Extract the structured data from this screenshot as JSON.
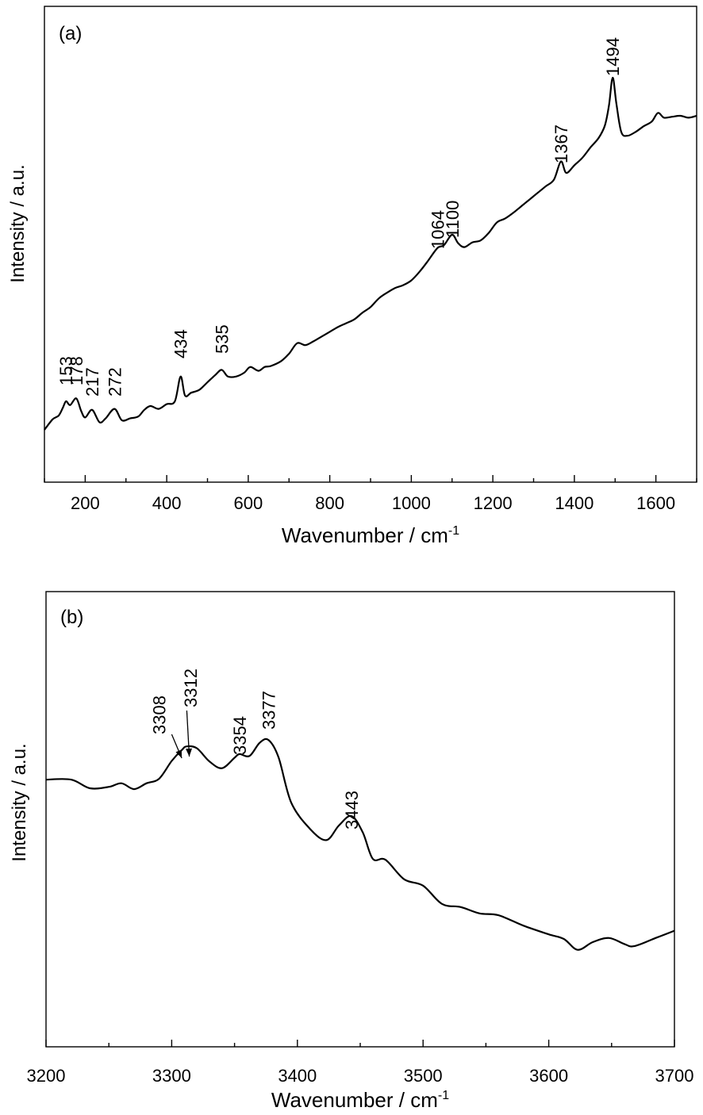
{
  "chart_data": [
    {
      "type": "line",
      "panel_label": "(a)",
      "xlabel": "Wavenumber / cm",
      "xlabel_sup": "-1",
      "ylabel": "Intensity / a.u.",
      "xlim": [
        100,
        1700
      ],
      "ylim": [
        0,
        100
      ],
      "xticks": [
        200,
        400,
        600,
        800,
        1000,
        1200,
        1400,
        1600
      ],
      "yticks_labeled": false,
      "series": [
        {
          "x": [
            100,
            120,
            135,
            145,
            153,
            163,
            178,
            190,
            200,
            217,
            235,
            250,
            272,
            290,
            310,
            330,
            345,
            360,
            380,
            400,
            420,
            434,
            445,
            460,
            480,
            500,
            520,
            535,
            550,
            570,
            590,
            605,
            625,
            640,
            655,
            680,
            700,
            720,
            740,
            760,
            780,
            800,
            820,
            840,
            860,
            880,
            900,
            920,
            940,
            960,
            980,
            1000,
            1020,
            1040,
            1064,
            1080,
            1100,
            1115,
            1130,
            1150,
            1170,
            1190,
            1210,
            1230,
            1250,
            1270,
            1290,
            1310,
            1330,
            1350,
            1367,
            1380,
            1400,
            1420,
            1440,
            1460,
            1475,
            1485,
            1494,
            1503,
            1515,
            1530,
            1550,
            1570,
            1590,
            1605,
            1620,
            1640,
            1660,
            1680,
            1700
          ],
          "y": [
            11.0,
            13.2,
            14.0,
            15.6,
            17.0,
            16.2,
            17.6,
            15.0,
            13.6,
            15.2,
            12.6,
            13.4,
            15.4,
            13.0,
            13.4,
            13.8,
            15.2,
            16.0,
            15.4,
            16.4,
            17.0,
            22.2,
            18.2,
            18.8,
            19.4,
            21.0,
            22.6,
            23.6,
            22.2,
            22.2,
            23.0,
            24.2,
            23.4,
            24.2,
            24.4,
            25.4,
            27.0,
            29.2,
            28.8,
            29.6,
            30.6,
            31.6,
            32.6,
            33.4,
            34.2,
            35.6,
            36.8,
            38.6,
            39.8,
            40.8,
            41.4,
            42.4,
            44.2,
            46.4,
            49.2,
            49.8,
            52.0,
            50.2,
            49.4,
            50.4,
            50.8,
            52.4,
            54.6,
            55.4,
            56.6,
            58.0,
            59.4,
            60.8,
            62.2,
            63.6,
            67.4,
            65.0,
            66.6,
            68.2,
            70.4,
            72.4,
            75.0,
            79.2,
            85.0,
            79.6,
            73.6,
            72.8,
            73.6,
            74.8,
            75.8,
            77.6,
            76.6,
            76.8,
            77.0,
            76.6,
            77.0
          ]
        }
      ],
      "annotations": [
        "153",
        "178",
        "217",
        "272",
        "434",
        "535",
        "1064",
        "1100",
        "1367",
        "1494"
      ]
    },
    {
      "type": "line",
      "panel_label": "(b)",
      "xlabel": "Wavenumber / cm",
      "xlabel_sup": "-1",
      "ylabel": "Intensity / a.u.",
      "xlim": [
        3200,
        3700
      ],
      "ylim": [
        0,
        100
      ],
      "xticks": [
        3200,
        3300,
        3400,
        3500,
        3600,
        3700
      ],
      "yticks_labeled": false,
      "series": [
        {
          "x": [
            3200,
            3220,
            3235,
            3250,
            3260,
            3270,
            3280,
            3290,
            3300,
            3308,
            3312,
            3320,
            3330,
            3340,
            3350,
            3354,
            3362,
            3370,
            3377,
            3385,
            3395,
            3410,
            3423,
            3433,
            3443,
            3452,
            3460,
            3470,
            3485,
            3500,
            3515,
            3530,
            3545,
            3560,
            3580,
            3600,
            3612,
            3623,
            3635,
            3648,
            3660,
            3668,
            3685,
            3700
          ],
          "y": [
            58.7,
            58.7,
            56.8,
            57.1,
            57.9,
            56.6,
            57.9,
            58.9,
            62.8,
            65.2,
            66.0,
            65.6,
            62.7,
            61.2,
            63.5,
            64.3,
            63.9,
            66.8,
            67.4,
            63.6,
            53.7,
            47.9,
            45.4,
            48.6,
            50.7,
            47.1,
            41.3,
            41.1,
            36.8,
            35.4,
            31.4,
            30.7,
            29.3,
            28.9,
            26.6,
            24.7,
            23.7,
            21.3,
            23.0,
            23.9,
            22.6,
            22.1,
            23.9,
            25.5
          ]
        }
      ],
      "annotations": [
        "3308",
        "3312",
        "3354",
        "3377",
        "3443"
      ]
    }
  ]
}
